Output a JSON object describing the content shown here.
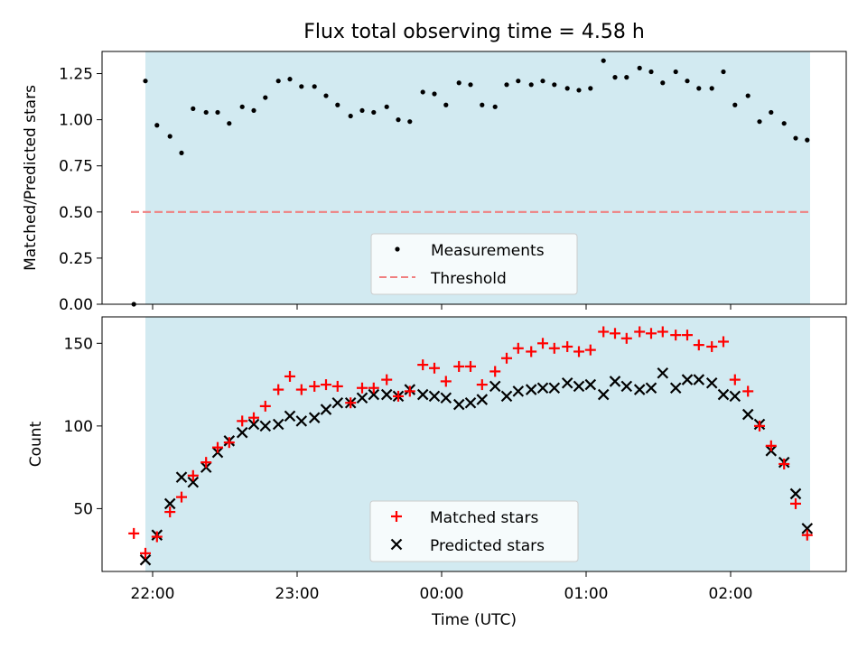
{
  "title": "Flux total observing time = 4.58 h",
  "colors": {
    "observing_band": "#add8e6",
    "measurement": "#000000",
    "threshold": "#f08080",
    "matched": "#ff0000",
    "predicted": "#000000"
  },
  "chart_data": [
    {
      "type": "scatter",
      "ylabel": "Matched/Predicted stars",
      "ylim": [
        0,
        1.37
      ],
      "yticks": [
        "0.00",
        "0.25",
        "0.50",
        "0.75",
        "1.00",
        "1.25"
      ],
      "ytick_values": [
        0,
        0.25,
        0.5,
        0.75,
        1.0,
        1.25
      ],
      "shaded_span_hours": [
        21.95,
        26.55
      ],
      "threshold": {
        "label": "Threshold",
        "value": 0.5,
        "x_range": [
          21.85,
          26.55
        ],
        "style": "dashed"
      },
      "legend": {
        "position": "lower-center",
        "entries": [
          "Measurements",
          "Threshold"
        ]
      },
      "series": [
        {
          "name": "Measurements",
          "marker": "dot",
          "x": [
            21.87,
            21.95,
            22.03,
            22.12,
            22.2,
            22.28,
            22.37,
            22.45,
            22.53,
            22.62,
            22.7,
            22.78,
            22.87,
            22.95,
            23.03,
            23.12,
            23.2,
            23.28,
            23.37,
            23.45,
            23.53,
            23.62,
            23.7,
            23.78,
            23.87,
            23.95,
            24.03,
            24.12,
            24.2,
            24.28,
            24.37,
            24.45,
            24.53,
            24.62,
            24.7,
            24.78,
            24.87,
            24.95,
            25.03,
            25.12,
            25.2,
            25.28,
            25.37,
            25.45,
            25.53,
            25.62,
            25.7,
            25.78,
            25.87,
            25.95,
            26.03,
            26.12,
            26.2,
            26.28,
            26.37,
            26.45,
            26.53
          ],
          "y": [
            0.0,
            1.21,
            0.97,
            0.91,
            0.82,
            1.06,
            1.04,
            1.04,
            0.98,
            1.07,
            1.05,
            1.12,
            1.21,
            1.22,
            1.18,
            1.18,
            1.13,
            1.08,
            1.02,
            1.05,
            1.04,
            1.07,
            1.0,
            0.99,
            1.15,
            1.14,
            1.08,
            1.2,
            1.19,
            1.08,
            1.07,
            1.19,
            1.21,
            1.19,
            1.21,
            1.19,
            1.17,
            1.16,
            1.17,
            1.32,
            1.23,
            1.23,
            1.28,
            1.26,
            1.2,
            1.26,
            1.21,
            1.17,
            1.17,
            1.26,
            1.08,
            1.13,
            0.99,
            1.04,
            0.98,
            0.9,
            0.89
          ]
        }
      ]
    },
    {
      "type": "scatter",
      "xlabel": "Time (UTC)",
      "ylabel": "Count",
      "xlim": [
        21.65,
        26.8
      ],
      "ylim": [
        12,
        166
      ],
      "xticks": [
        "22:00",
        "23:00",
        "00:00",
        "01:00",
        "02:00"
      ],
      "xtick_values": [
        22,
        23,
        24,
        25,
        26
      ],
      "yticks": [
        "50",
        "100",
        "150"
      ],
      "ytick_values": [
        50,
        100,
        150
      ],
      "shaded_span_hours": [
        21.95,
        26.55
      ],
      "legend": {
        "position": "lower-center",
        "entries": [
          "Matched stars",
          "Predicted stars"
        ]
      },
      "x": [
        21.87,
        21.95,
        22.03,
        22.12,
        22.2,
        22.28,
        22.37,
        22.45,
        22.53,
        22.62,
        22.7,
        22.78,
        22.87,
        22.95,
        23.03,
        23.12,
        23.2,
        23.28,
        23.37,
        23.45,
        23.53,
        23.62,
        23.7,
        23.78,
        23.87,
        23.95,
        24.03,
        24.12,
        24.2,
        24.28,
        24.37,
        24.45,
        24.53,
        24.62,
        24.7,
        24.78,
        24.87,
        24.95,
        25.03,
        25.12,
        25.2,
        25.28,
        25.37,
        25.45,
        25.53,
        25.62,
        25.7,
        25.78,
        25.87,
        25.95,
        26.03,
        26.12,
        26.2,
        26.28,
        26.37,
        26.45,
        26.53
      ],
      "series": [
        {
          "name": "Matched stars",
          "marker": "plus",
          "values": [
            35,
            23,
            33,
            48,
            57,
            70,
            78,
            87,
            90,
            103,
            105,
            112,
            122,
            130,
            122,
            124,
            125,
            124,
            114,
            123,
            123,
            128,
            118,
            121,
            137,
            135,
            127,
            136,
            136,
            125,
            133,
            141,
            147,
            145,
            150,
            147,
            148,
            145,
            146,
            157,
            156,
            153,
            157,
            156,
            157,
            155,
            155,
            149,
            148,
            151,
            128,
            121,
            100,
            88,
            77,
            53,
            34
          ]
        },
        {
          "name": "Predicted stars",
          "marker": "x",
          "values": [
            null,
            19,
            34,
            53,
            69,
            66,
            75,
            84,
            91,
            96,
            101,
            100,
            101,
            106,
            103,
            105,
            110,
            114,
            114,
            117,
            119,
            119,
            118,
            122,
            119,
            118,
            117,
            113,
            114,
            116,
            124,
            118,
            121,
            122,
            123,
            123,
            126,
            124,
            125,
            119,
            127,
            124,
            122,
            123,
            132,
            123,
            128,
            128,
            126,
            119,
            118,
            107,
            101,
            85,
            78,
            59,
            38
          ]
        }
      ]
    }
  ]
}
